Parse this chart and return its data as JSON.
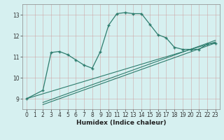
{
  "xlabel": "Humidex (Indice chaleur)",
  "bg_color": "#d6f0f0",
  "line_color": "#2e7d6e",
  "grid_color": "#cc9999",
  "xlim": [
    -0.5,
    23.5
  ],
  "ylim": [
    8.5,
    13.5
  ],
  "xticks": [
    0,
    1,
    2,
    3,
    4,
    5,
    6,
    7,
    8,
    9,
    10,
    11,
    12,
    13,
    14,
    15,
    16,
    17,
    18,
    19,
    20,
    21,
    22,
    23
  ],
  "yticks": [
    9,
    10,
    11,
    12,
    13
  ],
  "main_curve_x": [
    0,
    2,
    3,
    4,
    5,
    6,
    7,
    8,
    9,
    10,
    11,
    12,
    13,
    14,
    15,
    16,
    17,
    18,
    19,
    20,
    21,
    22,
    23
  ],
  "main_curve_y": [
    9.0,
    9.4,
    11.2,
    11.25,
    11.1,
    10.85,
    10.6,
    10.45,
    11.25,
    12.5,
    13.05,
    13.1,
    13.05,
    13.05,
    12.55,
    12.05,
    11.9,
    11.45,
    11.35,
    11.35,
    11.35,
    11.6,
    11.65
  ],
  "line1_x": [
    0,
    23
  ],
  "line1_y": [
    9.0,
    11.7
  ],
  "line2_x": [
    2,
    23
  ],
  "line2_y": [
    8.72,
    11.65
  ],
  "line3_x": [
    2,
    23
  ],
  "line3_y": [
    8.82,
    11.78
  ]
}
